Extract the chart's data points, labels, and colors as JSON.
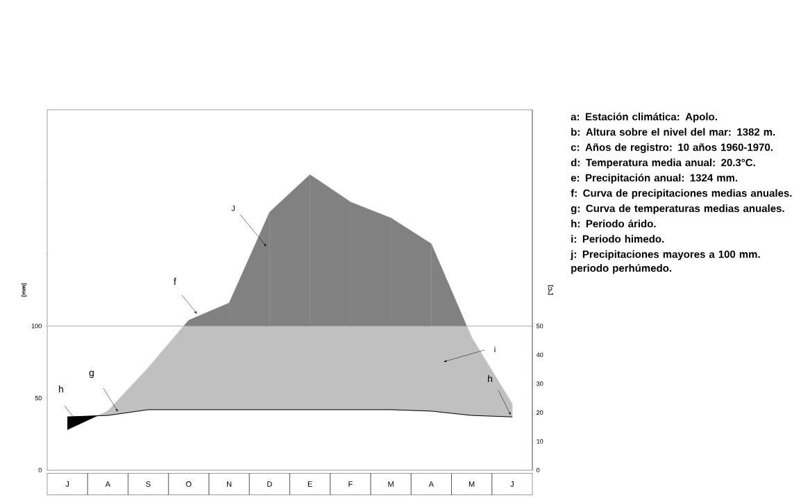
{
  "chart_data": {
    "type": "area",
    "categories": [
      "J",
      "A",
      "S",
      "O",
      "N",
      "D",
      "E",
      "F",
      "M",
      "A",
      "M",
      "J"
    ],
    "series": [
      {
        "type": "area",
        "color": "#c0c0c0",
        "values": [
          28,
          41,
          71,
          104,
          116,
          179,
          205,
          186,
          175,
          157,
          92,
          46
        ]
      },
      {
        "type": "line",
        "axis": "y2",
        "color": "#000000",
        "values": [
          18.5,
          19,
          21,
          21,
          21,
          21,
          21,
          21,
          21,
          20.5,
          19,
          18.5
        ]
      }
    ],
    "ylabel": "[mm]",
    "y2label": "[°C]",
    "ylim": [
      0,
      250
    ],
    "yticks": [
      0,
      50,
      100,
      {
        "value": 150,
        "label": null
      },
      {
        "value": 200,
        "label": null
      }
    ],
    "y2lim": [
      0,
      125
    ],
    "y2ticks": [
      0,
      10,
      20,
      30,
      40,
      50
    ],
    "ref_lines": [
      {
        "axis": "y",
        "value": 100,
        "color": "#c0c0c0"
      }
    ],
    "annotations": [
      "f",
      "J",
      "g",
      "h",
      "h",
      "i",
      "a: Estación climática: Apolo.",
      "b: Altura sobre el nivel del mar: 1382 m.",
      "c: Años de registro: 10 años 1960-1970.",
      "d: Temperatura media anual: 20.3°C.",
      "e: Precipitación anual: 1324 mm.",
      "f: Curva de precipitaciones medias anuales.",
      "g: Curva de temperaturas medias anuales.",
      "h: Periodo árido.",
      "i: Periodo himedo.",
      "j: Precipitaciones mayores a 100 mm. periodo perhúmedo."
    ]
  }
}
